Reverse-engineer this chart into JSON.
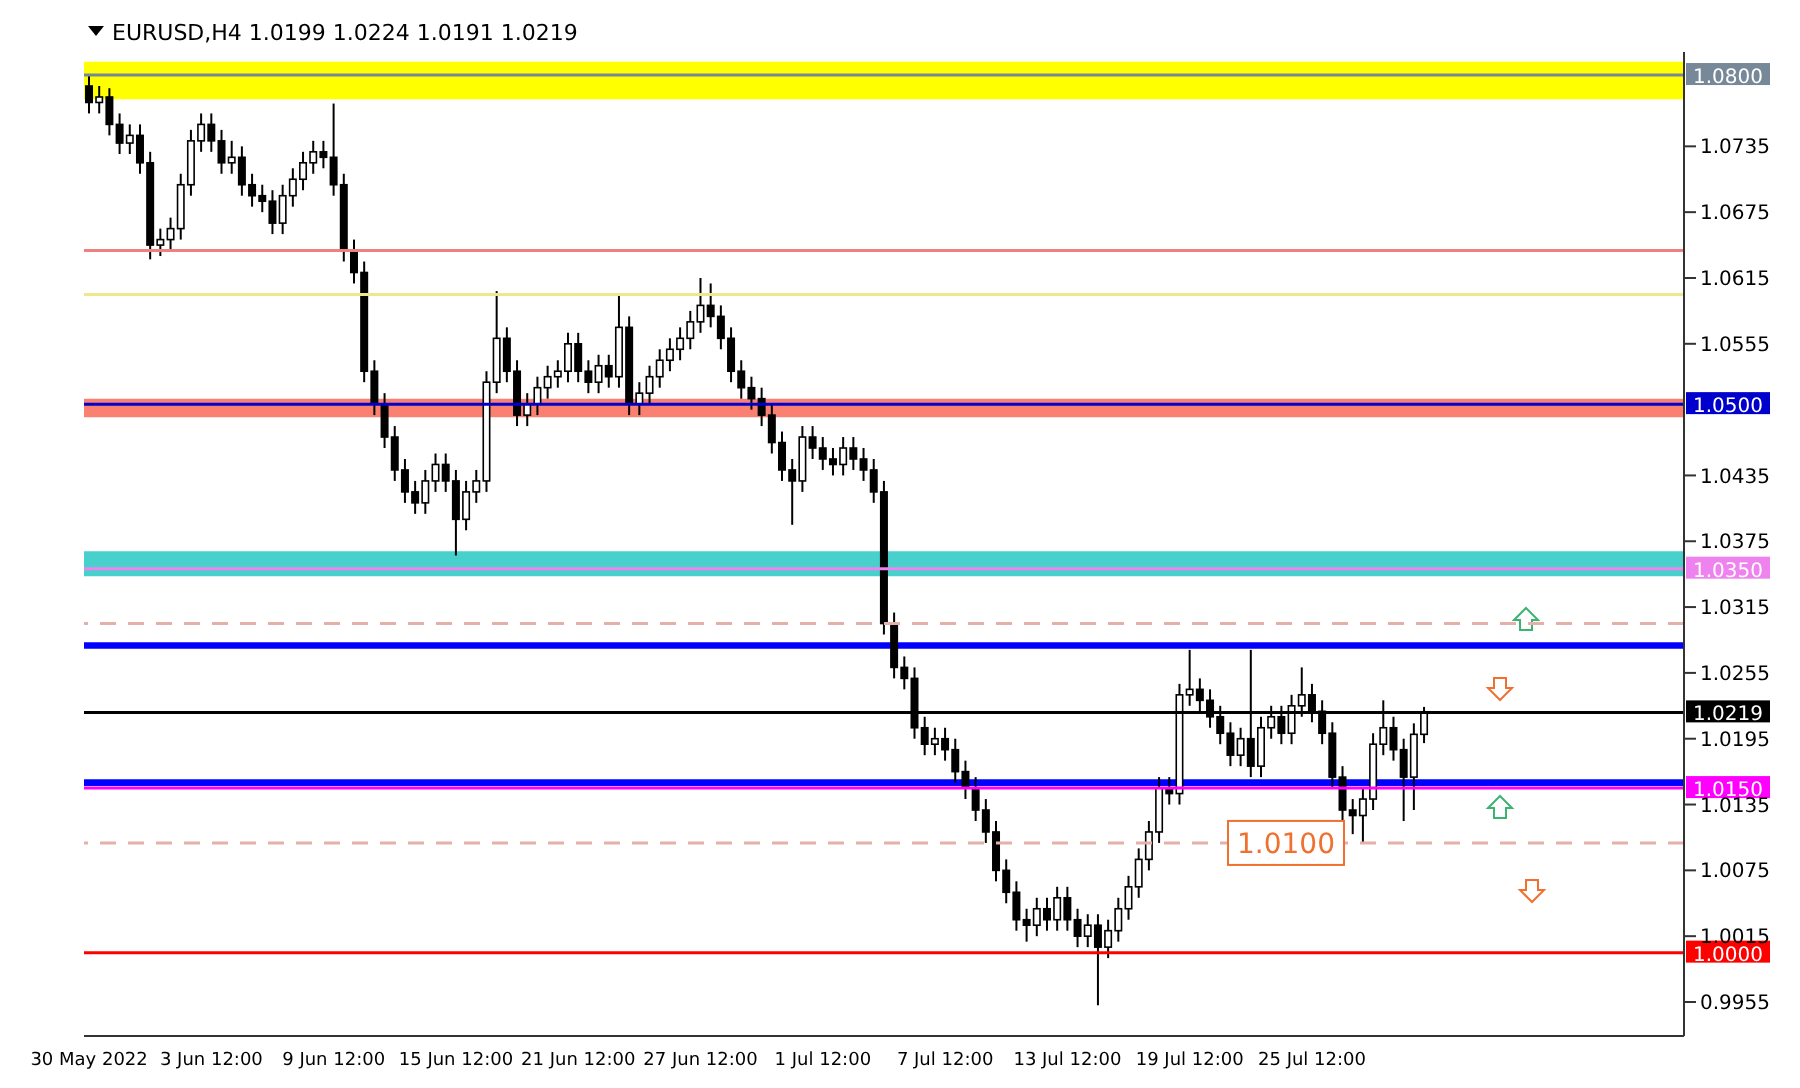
{
  "chart_data": {
    "type": "candlestick",
    "title": "EURUSD,H4  1.0199 1.0224 1.0191 1.0219",
    "color": "#000000",
    "categories": [
      "30 May 2022",
      null,
      null,
      null,
      null,
      null,
      null,
      null,
      null,
      null,
      null,
      null,
      "3 Jun 12:00",
      null,
      null,
      null,
      null,
      null,
      null,
      null,
      null,
      null,
      null,
      null,
      "9 Jun 12:00",
      null,
      null,
      null,
      null,
      null,
      null,
      null,
      null,
      null,
      null,
      null,
      "15 Jun 12:00",
      null,
      null,
      null,
      null,
      null,
      null,
      null,
      null,
      null,
      null,
      null,
      "21 Jun 12:00",
      null,
      null,
      null,
      null,
      null,
      null,
      null,
      null,
      null,
      null,
      null,
      "27 Jun 12:00",
      null,
      null,
      null,
      null,
      null,
      null,
      null,
      null,
      null,
      null,
      null,
      "1 Jul 12:00",
      null,
      null,
      null,
      null,
      null,
      null,
      null,
      null,
      null,
      null,
      null,
      "7 Jul 12:00",
      null,
      null,
      null,
      null,
      null,
      null,
      null,
      null,
      null,
      null,
      null,
      "13 Jul 12:00",
      null,
      null,
      null,
      null,
      null,
      null,
      null,
      null,
      null,
      null,
      null,
      "19 Jul 12:00",
      null,
      null,
      null,
      null,
      null,
      null,
      null,
      null,
      null,
      null,
      null,
      "25 Jul 12:00",
      null,
      null,
      null,
      null,
      null,
      null,
      null,
      null,
      null,
      null,
      null,
      null,
      null,
      null,
      null,
      null,
      null,
      null,
      null,
      null,
      null,
      null,
      null,
      null,
      null,
      null,
      null,
      null,
      null,
      null,
      null,
      null,
      null,
      null,
      null,
      null
    ],
    "ohlc": [
      [
        1.079,
        1.08,
        1.0765,
        1.0775
      ],
      [
        1.0775,
        1.079,
        1.0765,
        1.078
      ],
      [
        1.078,
        1.0788,
        1.0745,
        1.0755
      ],
      [
        1.0755,
        1.0765,
        1.0728,
        1.0738
      ],
      [
        1.0738,
        1.0755,
        1.0728,
        1.0745
      ],
      [
        1.0745,
        1.0755,
        1.071,
        1.072
      ],
      [
        1.072,
        1.073,
        1.0632,
        1.0645
      ],
      [
        1.0645,
        1.066,
        1.0635,
        1.065
      ],
      [
        1.065,
        1.067,
        1.064,
        1.066
      ],
      [
        1.066,
        1.071,
        1.065,
        1.07
      ],
      [
        1.07,
        1.075,
        1.069,
        1.074
      ],
      [
        1.074,
        1.0765,
        1.073,
        1.0755
      ],
      [
        1.0755,
        1.0765,
        1.073,
        1.074
      ],
      [
        1.074,
        1.075,
        1.071,
        1.072
      ],
      [
        1.072,
        1.074,
        1.071,
        1.0725
      ],
      [
        1.0725,
        1.0735,
        1.069,
        1.07
      ],
      [
        1.07,
        1.071,
        1.068,
        1.069
      ],
      [
        1.069,
        1.07,
        1.0675,
        1.0685
      ],
      [
        1.0685,
        1.0695,
        1.0655,
        1.0665
      ],
      [
        1.0665,
        1.07,
        1.0655,
        1.069
      ],
      [
        1.069,
        1.0715,
        1.068,
        1.0705
      ],
      [
        1.0705,
        1.073,
        1.0695,
        1.072
      ],
      [
        1.072,
        1.074,
        1.071,
        1.073
      ],
      [
        1.073,
        1.074,
        1.0715,
        1.0725
      ],
      [
        1.0725,
        1.0774,
        1.069,
        1.07
      ],
      [
        1.07,
        1.071,
        1.063,
        1.064
      ],
      [
        1.064,
        1.065,
        1.061,
        1.062
      ],
      [
        1.062,
        1.063,
        1.052,
        1.053
      ],
      [
        1.053,
        1.054,
        1.049,
        1.05
      ],
      [
        1.05,
        1.051,
        1.046,
        1.047
      ],
      [
        1.047,
        1.048,
        1.043,
        1.044
      ],
      [
        1.044,
        1.045,
        1.041,
        1.042
      ],
      [
        1.042,
        1.043,
        1.04,
        1.041
      ],
      [
        1.041,
        1.044,
        1.04,
        1.043
      ],
      [
        1.043,
        1.0455,
        1.042,
        1.0445
      ],
      [
        1.0445,
        1.0455,
        1.042,
        1.043
      ],
      [
        1.043,
        1.044,
        1.0362,
        1.0395
      ],
      [
        1.0395,
        1.043,
        1.0385,
        1.042
      ],
      [
        1.042,
        1.044,
        1.041,
        1.043
      ],
      [
        1.043,
        1.053,
        1.042,
        1.052
      ],
      [
        1.052,
        1.0603,
        1.051,
        1.056
      ],
      [
        1.056,
        1.057,
        1.052,
        1.053
      ],
      [
        1.053,
        1.054,
        1.048,
        1.049
      ],
      [
        1.049,
        1.051,
        1.048,
        1.05
      ],
      [
        1.05,
        1.0525,
        1.049,
        1.0515
      ],
      [
        1.0515,
        1.0535,
        1.0505,
        1.0525
      ],
      [
        1.0525,
        1.054,
        1.0515,
        1.053
      ],
      [
        1.053,
        1.0565,
        1.052,
        1.0555
      ],
      [
        1.0555,
        1.0565,
        1.052,
        1.053
      ],
      [
        1.053,
        1.054,
        1.051,
        1.052
      ],
      [
        1.052,
        1.0545,
        1.051,
        1.0535
      ],
      [
        1.0535,
        1.0545,
        1.0515,
        1.0525
      ],
      [
        1.0525,
        1.06,
        1.0515,
        1.057
      ],
      [
        1.057,
        1.058,
        1.049,
        1.05
      ],
      [
        1.05,
        1.052,
        1.049,
        1.051
      ],
      [
        1.051,
        1.0535,
        1.05,
        1.0525
      ],
      [
        1.0525,
        1.055,
        1.0515,
        1.054
      ],
      [
        1.054,
        1.056,
        1.053,
        1.055
      ],
      [
        1.055,
        1.057,
        1.054,
        1.056
      ],
      [
        1.056,
        1.0585,
        1.055,
        1.0575
      ],
      [
        1.0575,
        1.0615,
        1.0565,
        1.059
      ],
      [
        1.059,
        1.061,
        1.057,
        1.058
      ],
      [
        1.058,
        1.059,
        1.055,
        1.056
      ],
      [
        1.056,
        1.057,
        1.052,
        1.053
      ],
      [
        1.053,
        1.054,
        1.0505,
        1.0515
      ],
      [
        1.0515,
        1.0525,
        1.0495,
        1.0505
      ],
      [
        1.0505,
        1.0515,
        1.048,
        1.049
      ],
      [
        1.049,
        1.05,
        1.0455,
        1.0465
      ],
      [
        1.0465,
        1.0475,
        1.043,
        1.044
      ],
      [
        1.044,
        1.045,
        1.039,
        1.043
      ],
      [
        1.043,
        1.048,
        1.042,
        1.047
      ],
      [
        1.047,
        1.048,
        1.045,
        1.046
      ],
      [
        1.046,
        1.047,
        1.044,
        1.045
      ],
      [
        1.045,
        1.046,
        1.0435,
        1.0445
      ],
      [
        1.0445,
        1.047,
        1.0435,
        1.046
      ],
      [
        1.046,
        1.047,
        1.044,
        1.045
      ],
      [
        1.045,
        1.046,
        1.043,
        1.044
      ],
      [
        1.044,
        1.045,
        1.041,
        1.042
      ],
      [
        1.042,
        1.043,
        1.029,
        1.03
      ],
      [
        1.03,
        1.031,
        1.025,
        1.026
      ],
      [
        1.026,
        1.027,
        1.024,
        1.025
      ],
      [
        1.025,
        1.026,
        1.0195,
        1.0205
      ],
      [
        1.0205,
        1.0215,
        1.018,
        1.019
      ],
      [
        1.019,
        1.0205,
        1.018,
        1.0195
      ],
      [
        1.0195,
        1.0205,
        1.0175,
        1.0185
      ],
      [
        1.0185,
        1.0195,
        1.0155,
        1.0165
      ],
      [
        1.0165,
        1.0175,
        1.014,
        1.015
      ],
      [
        1.015,
        1.016,
        1.012,
        1.013
      ],
      [
        1.013,
        1.014,
        1.01,
        1.011
      ],
      [
        1.011,
        1.012,
        1.0065,
        1.0075
      ],
      [
        1.0075,
        1.0085,
        1.0045,
        1.0055
      ],
      [
        1.0055,
        1.0065,
        1.002,
        1.003
      ],
      [
        1.003,
        1.004,
        1.001,
        1.0025
      ],
      [
        1.0025,
        1.005,
        1.0015,
        1.004
      ],
      [
        1.004,
        1.005,
        1.002,
        1.003
      ],
      [
        1.003,
        1.006,
        1.002,
        1.005
      ],
      [
        1.005,
        1.006,
        1.002,
        1.003
      ],
      [
        1.003,
        1.004,
        1.0005,
        1.0015
      ],
      [
        1.0015,
        1.0035,
        1.0005,
        1.0025
      ],
      [
        1.0025,
        1.0035,
        0.9952,
        1.0005
      ],
      [
        1.0005,
        1.003,
        0.9995,
        1.002
      ],
      [
        1.002,
        1.005,
        1.001,
        1.004
      ],
      [
        1.004,
        1.007,
        1.003,
        1.006
      ],
      [
        1.006,
        1.0095,
        1.005,
        1.0085
      ],
      [
        1.0085,
        1.012,
        1.0075,
        1.011
      ],
      [
        1.011,
        1.016,
        1.01,
        1.015
      ],
      [
        1.015,
        1.016,
        1.0135,
        1.0145
      ],
      [
        1.0145,
        1.0245,
        1.0135,
        1.0235
      ],
      [
        1.0235,
        1.0276,
        1.0225,
        1.024
      ],
      [
        1.024,
        1.025,
        1.022,
        1.023
      ],
      [
        1.023,
        1.024,
        1.0205,
        1.0215
      ],
      [
        1.0215,
        1.0225,
        1.019,
        1.02
      ],
      [
        1.02,
        1.021,
        1.017,
        1.018
      ],
      [
        1.018,
        1.0205,
        1.017,
        1.0195
      ],
      [
        1.0195,
        1.0276,
        1.016,
        1.017
      ],
      [
        1.017,
        1.0215,
        1.016,
        1.0205
      ],
      [
        1.0205,
        1.0225,
        1.0195,
        1.0215
      ],
      [
        1.0215,
        1.0225,
        1.019,
        1.02
      ],
      [
        1.02,
        1.0235,
        1.019,
        1.0225
      ],
      [
        1.0225,
        1.026,
        1.0215,
        1.0235
      ],
      [
        1.0235,
        1.0245,
        1.021,
        1.022
      ],
      [
        1.022,
        1.023,
        1.019,
        1.02
      ],
      [
        1.02,
        1.021,
        1.015,
        1.016
      ],
      [
        1.016,
        1.017,
        1.012,
        1.013
      ],
      [
        1.013,
        1.014,
        1.0108,
        1.0125
      ],
      [
        1.0125,
        1.015,
        1.01,
        1.014
      ],
      [
        1.014,
        1.02,
        1.013,
        1.019
      ],
      [
        1.019,
        1.023,
        1.018,
        1.0205
      ],
      [
        1.0205,
        1.0215,
        1.0175,
        1.0185
      ],
      [
        1.0185,
        1.0195,
        1.012,
        1.016
      ],
      [
        1.016,
        1.0209,
        1.013,
        1.0199
      ],
      [
        1.0199,
        1.0224,
        1.0191,
        1.0219
      ],
      null,
      null,
      null,
      null,
      null,
      null,
      null,
      null,
      null,
      null,
      null,
      null,
      null,
      null,
      null,
      null,
      null,
      null,
      null,
      null,
      null,
      null,
      null,
      null,
      null
    ],
    "ylim": [
      0.9924,
      1.0821
    ],
    "yticks": [
      1.0735,
      1.0675,
      1.0615,
      1.0555,
      1.0435,
      1.0375,
      1.0315,
      1.0255,
      1.0195,
      1.0135,
      1.0075,
      1.0015,
      0.9955
    ],
    "bands": [
      {
        "axis": "y",
        "from": 1.0778,
        "to": 1.0812,
        "color": "#ffff00"
      },
      {
        "axis": "y",
        "from": 1.0488,
        "to": 1.0505,
        "color": "#fa8072"
      },
      {
        "axis": "y",
        "from": 1.0343,
        "to": 1.0366,
        "color": "#48d1cc"
      },
      {
        "axis": "y",
        "from": 1.0277,
        "to": 1.0283,
        "color": "#0000ff"
      },
      {
        "axis": "y",
        "from": 1.0152,
        "to": 1.0158,
        "color": "#0000ff"
      }
    ],
    "ref_lines": [
      {
        "axis": "y",
        "value": 1.08,
        "label": "1.0800",
        "color": "#778899"
      },
      {
        "axis": "y",
        "value": 1.064,
        "color": "#f08080"
      },
      {
        "axis": "y",
        "value": 1.06,
        "color": "#f0e68c"
      },
      {
        "axis": "y",
        "value": 1.05,
        "label": "1.0500",
        "color": "#0000cd"
      },
      {
        "axis": "y",
        "value": 1.035,
        "label": "1.0350",
        "color": "#ee82ee"
      },
      {
        "axis": "y",
        "value": 1.03,
        "color": "#e6b0aa",
        "line_style": "dashed"
      },
      {
        "axis": "y",
        "value": 1.0219,
        "label": "1.0219",
        "color": "#000000"
      },
      {
        "axis": "y",
        "value": 1.015,
        "label": "1.0150",
        "color": "#ff00ff"
      },
      {
        "axis": "y",
        "value": 1.01,
        "label": "1.0100",
        "color": "#e6b0aa",
        "line_style": "dashed"
      },
      {
        "axis": "y",
        "value": 1.0,
        "label": "1.0000",
        "color": "#ff0000"
      }
    ],
    "tick_labels": "xy"
  }
}
